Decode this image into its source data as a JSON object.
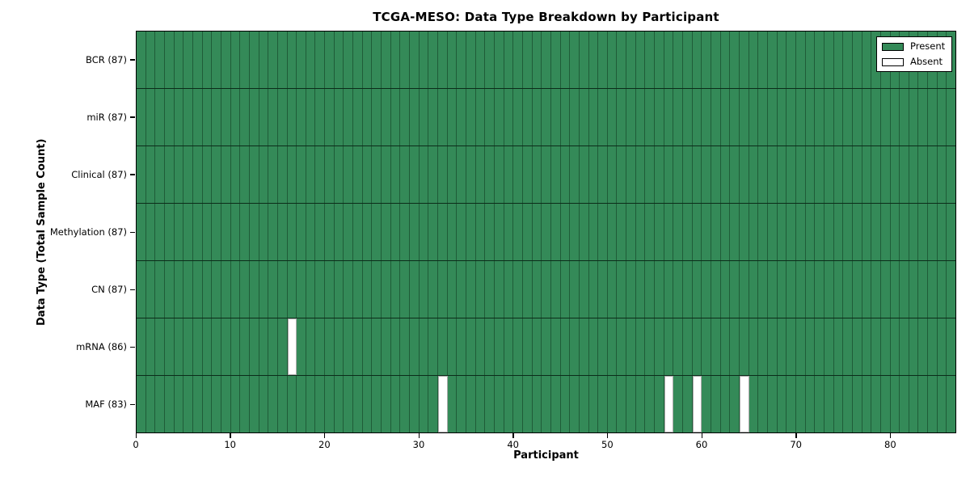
{
  "chart_data": {
    "type": "heatmap",
    "title": "TCGA-MESO: Data Type Breakdown by Participant",
    "xlabel": "Participant",
    "ylabel": "Data Type (Total Sample Count)",
    "n_participants": 87,
    "xlim": [
      0,
      87
    ],
    "x_ticks": [
      0,
      10,
      20,
      30,
      40,
      50,
      60,
      70,
      80
    ],
    "grid": false,
    "legend_position": "upper right",
    "legend": [
      {
        "label": "Present",
        "color": "#348a58"
      },
      {
        "label": "Absent",
        "color": "#ffffff"
      }
    ],
    "rows": [
      {
        "name": "BCR",
        "label": "BCR (87)",
        "present_count": 87,
        "absent_participants": []
      },
      {
        "name": "miR",
        "label": "miR (87)",
        "present_count": 87,
        "absent_participants": []
      },
      {
        "name": "Clinical",
        "label": "Clinical (87)",
        "present_count": 87,
        "absent_participants": []
      },
      {
        "name": "Methylation",
        "label": "Methylation (87)",
        "present_count": 87,
        "absent_participants": []
      },
      {
        "name": "CN",
        "label": "CN (87)",
        "present_count": 87,
        "absent_participants": []
      },
      {
        "name": "mRNA",
        "label": "mRNA (86)",
        "present_count": 86,
        "absent_participants": [
          16
        ]
      },
      {
        "name": "MAF",
        "label": "MAF (83)",
        "present_count": 83,
        "absent_participants": [
          32,
          56,
          59,
          64
        ]
      }
    ],
    "colors": {
      "present": "#348a58",
      "absent": "#ffffff",
      "cell_border": "#1f5c38",
      "row_border": "#0c2c1a",
      "axis": "#000000"
    }
  }
}
